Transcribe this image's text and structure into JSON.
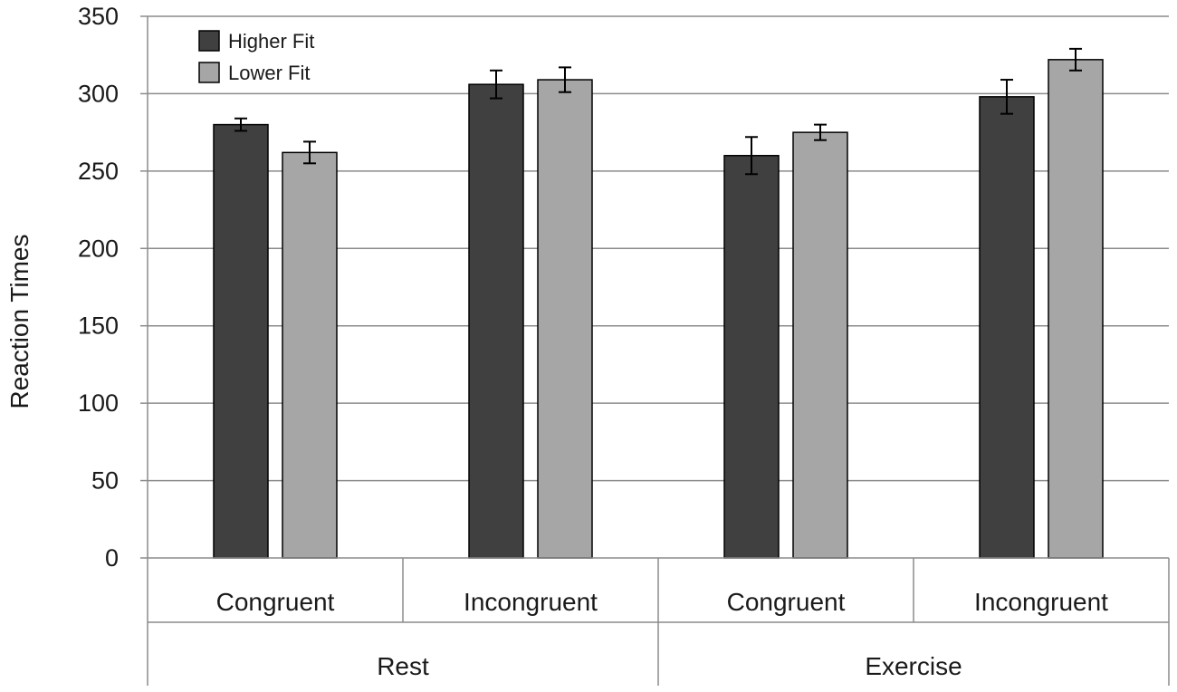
{
  "chart_data": {
    "type": "bar",
    "title": "",
    "xlabel": "",
    "ylabel": "Reaction Times",
    "ylim": [
      0,
      350
    ],
    "yticks": [
      0,
      50,
      100,
      150,
      200,
      250,
      300,
      350
    ],
    "grid": true,
    "legend_position": "top-left",
    "groups": [
      {
        "label": "Rest",
        "categories": [
          "Congruent",
          "Incongruent"
        ]
      },
      {
        "label": "Exercise",
        "categories": [
          "Congruent",
          "Incongruent"
        ]
      }
    ],
    "categories": [
      "Congruent",
      "Incongruent",
      "Congruent",
      "Incongruent"
    ],
    "series": [
      {
        "name": "Higher Fit",
        "color": "#404040",
        "values": [
          280,
          306,
          260,
          298
        ],
        "errors": [
          4,
          9,
          12,
          11
        ]
      },
      {
        "name": "Lower Fit",
        "color": "#a6a6a6",
        "values": [
          262,
          309,
          275,
          322
        ],
        "errors": [
          7,
          8,
          5,
          7
        ]
      }
    ]
  }
}
